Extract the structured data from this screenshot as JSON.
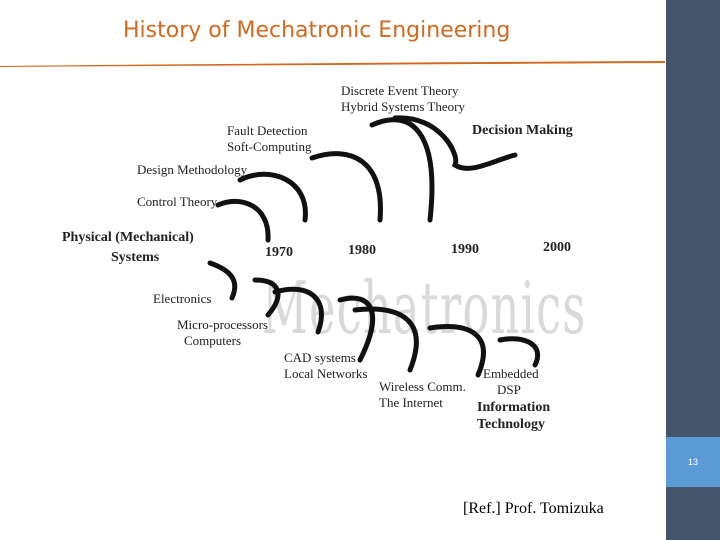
{
  "slide": {
    "title": "History of Mechatronic Engineering",
    "page_number": "13",
    "reference": "[Ref.] Prof. Tomizuka",
    "accent_color": "#d2691e",
    "sidebar_color": "#44546a",
    "page_box_color": "#5b9bd5"
  },
  "diagram": {
    "watermark": "Mechatronics",
    "upper_labels": {
      "discrete_event": "Discrete Event Theory",
      "hybrid_systems": "Hybrid Systems Theory",
      "fault_detection": "Fault Detection",
      "soft_computing": "Soft-Computing",
      "design_methodology": "Design Methodology",
      "control_theory": "Control Theory",
      "decision_making": "Decision Making"
    },
    "center_labels": {
      "physical_line1": "Physical (Mechanical)",
      "physical_line2": "Systems"
    },
    "years": [
      "1970",
      "1980",
      "1990",
      "2000"
    ],
    "lower_labels": {
      "electronics": "Electronics",
      "microprocessors": "Micro-processors",
      "computers": "Computers",
      "cad_systems": "CAD systems",
      "local_networks": "Local Networks",
      "wireless": "Wireless Comm.",
      "internet": "The Internet",
      "embedded": "Embedded",
      "dsp": "DSP",
      "information": "Information",
      "technology": "Technology"
    }
  }
}
